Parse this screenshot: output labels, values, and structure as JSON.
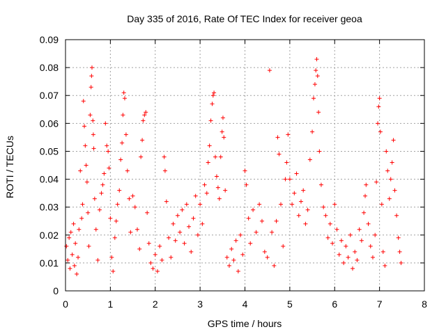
{
  "chart_data": {
    "type": "scatter",
    "title": "Day 335 of 2016, Rate Of TEC Index for receiver geoa",
    "xlabel": "GPS time / hours",
    "ylabel": "ROTI / TECUs",
    "xlim": [
      0,
      8
    ],
    "ylim": [
      0,
      0.09
    ],
    "x_ticks": [
      "0",
      "1",
      "2",
      "3",
      "4",
      "5",
      "6",
      "7",
      "8"
    ],
    "y_ticks": [
      "0",
      "0.01",
      "0.02",
      "0.03",
      "0.04",
      "0.05",
      "0.06",
      "0.07",
      "0.08",
      "0.09"
    ],
    "grid": true,
    "marker": "+",
    "color": "#ff0000",
    "series": [
      {
        "name": "ROTI",
        "points": [
          [
            0.02,
            0.016
          ],
          [
            0.05,
            0.011
          ],
          [
            0.08,
            0.019
          ],
          [
            0.1,
            0.008
          ],
          [
            0.12,
            0.021
          ],
          [
            0.15,
            0.013
          ],
          [
            0.18,
            0.024
          ],
          [
            0.2,
            0.009
          ],
          [
            0.22,
            0.017
          ],
          [
            0.25,
            0.006
          ],
          [
            0.28,
            0.012
          ],
          [
            0.3,
            0.022
          ],
          [
            0.33,
            0.043
          ],
          [
            0.36,
            0.026
          ],
          [
            0.38,
            0.031
          ],
          [
            0.4,
            0.068
          ],
          [
            0.42,
            0.059
          ],
          [
            0.44,
            0.052
          ],
          [
            0.46,
            0.045
          ],
          [
            0.48,
            0.039
          ],
          [
            0.5,
            0.028
          ],
          [
            0.52,
            0.016
          ],
          [
            0.55,
            0.063
          ],
          [
            0.57,
            0.073
          ],
          [
            0.58,
            0.077
          ],
          [
            0.59,
            0.08
          ],
          [
            0.61,
            0.061
          ],
          [
            0.62,
            0.056
          ],
          [
            0.63,
            0.051
          ],
          [
            0.65,
            0.033
          ],
          [
            0.68,
            0.022
          ],
          [
            0.72,
            0.011
          ],
          [
            0.76,
            0.029
          ],
          [
            0.8,
            0.035
          ],
          [
            0.83,
            0.038
          ],
          [
            0.86,
            0.042
          ],
          [
            0.89,
            0.06
          ],
          [
            0.92,
            0.052
          ],
          [
            0.95,
            0.05
          ],
          [
            0.97,
            0.044
          ],
          [
            1.0,
            0.026
          ],
          [
            1.03,
            0.012
          ],
          [
            1.06,
            0.007
          ],
          [
            1.1,
            0.019
          ],
          [
            1.13,
            0.025
          ],
          [
            1.16,
            0.031
          ],
          [
            1.2,
            0.036
          ],
          [
            1.23,
            0.047
          ],
          [
            1.26,
            0.053
          ],
          [
            1.28,
            0.063
          ],
          [
            1.3,
            0.071
          ],
          [
            1.32,
            0.069
          ],
          [
            1.35,
            0.056
          ],
          [
            1.38,
            0.043
          ],
          [
            1.42,
            0.033
          ],
          [
            1.45,
            0.021
          ],
          [
            1.5,
            0.034
          ],
          [
            1.55,
            0.03
          ],
          [
            1.6,
            0.022
          ],
          [
            1.65,
            0.015
          ],
          [
            1.68,
            0.048
          ],
          [
            1.71,
            0.054
          ],
          [
            1.73,
            0.061
          ],
          [
            1.76,
            0.063
          ],
          [
            1.79,
            0.064
          ],
          [
            1.82,
            0.028
          ],
          [
            1.86,
            0.017
          ],
          [
            1.9,
            0.01
          ],
          [
            1.95,
            0.008
          ],
          [
            2.0,
            0.013
          ],
          [
            2.05,
            0.007
          ],
          [
            2.1,
            0.016
          ],
          [
            2.15,
            0.011
          ],
          [
            2.2,
            0.048
          ],
          [
            2.22,
            0.043
          ],
          [
            2.25,
            0.032
          ],
          [
            2.3,
            0.019
          ],
          [
            2.35,
            0.012
          ],
          [
            2.4,
            0.024
          ],
          [
            2.45,
            0.018
          ],
          [
            2.5,
            0.027
          ],
          [
            2.55,
            0.021
          ],
          [
            2.6,
            0.029
          ],
          [
            2.65,
            0.017
          ],
          [
            2.7,
            0.031
          ],
          [
            2.75,
            0.023
          ],
          [
            2.8,
            0.014
          ],
          [
            2.85,
            0.026
          ],
          [
            2.9,
            0.034
          ],
          [
            2.95,
            0.02
          ],
          [
            3.0,
            0.031
          ],
          [
            3.05,
            0.024
          ],
          [
            3.1,
            0.038
          ],
          [
            3.15,
            0.035
          ],
          [
            3.18,
            0.046
          ],
          [
            3.21,
            0.052
          ],
          [
            3.24,
            0.061
          ],
          [
            3.27,
            0.067
          ],
          [
            3.29,
            0.07
          ],
          [
            3.31,
            0.071
          ],
          [
            3.34,
            0.048
          ],
          [
            3.37,
            0.041
          ],
          [
            3.4,
            0.037
          ],
          [
            3.43,
            0.033
          ],
          [
            3.46,
            0.048
          ],
          [
            3.49,
            0.057
          ],
          [
            3.51,
            0.062
          ],
          [
            3.53,
            0.055
          ],
          [
            3.56,
            0.036
          ],
          [
            3.6,
            0.012
          ],
          [
            3.65,
            0.009
          ],
          [
            3.7,
            0.015
          ],
          [
            3.75,
            0.011
          ],
          [
            3.8,
            0.018
          ],
          [
            3.85,
            0.007
          ],
          [
            3.9,
            0.02
          ],
          [
            3.95,
            0.013
          ],
          [
            4.0,
            0.043
          ],
          [
            4.03,
            0.038
          ],
          [
            4.08,
            0.026
          ],
          [
            4.12,
            0.017
          ],
          [
            4.18,
            0.029
          ],
          [
            4.25,
            0.021
          ],
          [
            4.32,
            0.031
          ],
          [
            4.38,
            0.025
          ],
          [
            4.44,
            0.014
          ],
          [
            4.5,
            0.012
          ],
          [
            4.55,
            0.079
          ],
          [
            4.6,
            0.021
          ],
          [
            4.65,
            0.009
          ],
          [
            4.7,
            0.025
          ],
          [
            4.73,
            0.055
          ],
          [
            4.76,
            0.049
          ],
          [
            4.8,
            0.031
          ],
          [
            4.85,
            0.016
          ],
          [
            4.9,
            0.04
          ],
          [
            4.93,
            0.046
          ],
          [
            4.96,
            0.056
          ],
          [
            5.0,
            0.04
          ],
          [
            5.05,
            0.031
          ],
          [
            5.1,
            0.035
          ],
          [
            5.15,
            0.042
          ],
          [
            5.2,
            0.027
          ],
          [
            5.25,
            0.032
          ],
          [
            5.3,
            0.036
          ],
          [
            5.35,
            0.024
          ],
          [
            5.4,
            0.029
          ],
          [
            5.45,
            0.047
          ],
          [
            5.5,
            0.057
          ],
          [
            5.53,
            0.069
          ],
          [
            5.56,
            0.074
          ],
          [
            5.58,
            0.079
          ],
          [
            5.6,
            0.083
          ],
          [
            5.62,
            0.077
          ],
          [
            5.64,
            0.064
          ],
          [
            5.66,
            0.05
          ],
          [
            5.7,
            0.038
          ],
          [
            5.75,
            0.03
          ],
          [
            5.8,
            0.027
          ],
          [
            5.85,
            0.019
          ],
          [
            5.9,
            0.024
          ],
          [
            5.95,
            0.017
          ],
          [
            6.0,
            0.031
          ],
          [
            6.05,
            0.022
          ],
          [
            6.1,
            0.013
          ],
          [
            6.15,
            0.018
          ],
          [
            6.2,
            0.01
          ],
          [
            6.25,
            0.016
          ],
          [
            6.3,
            0.012
          ],
          [
            6.35,
            0.02
          ],
          [
            6.4,
            0.008
          ],
          [
            6.45,
            0.014
          ],
          [
            6.5,
            0.011
          ],
          [
            6.55,
            0.022
          ],
          [
            6.6,
            0.018
          ],
          [
            6.65,
            0.028
          ],
          [
            6.68,
            0.034
          ],
          [
            6.7,
            0.038
          ],
          [
            6.75,
            0.024
          ],
          [
            6.8,
            0.016
          ],
          [
            6.85,
            0.012
          ],
          [
            6.9,
            0.02
          ],
          [
            6.93,
            0.039
          ],
          [
            6.96,
            0.06
          ],
          [
            6.98,
            0.066
          ],
          [
            7.0,
            0.069
          ],
          [
            7.02,
            0.057
          ],
          [
            7.05,
            0.031
          ],
          [
            7.08,
            0.014
          ],
          [
            7.12,
            0.009
          ],
          [
            7.15,
            0.05
          ],
          [
            7.18,
            0.043
          ],
          [
            7.22,
            0.033
          ],
          [
            7.25,
            0.04
          ],
          [
            7.28,
            0.046
          ],
          [
            7.31,
            0.054
          ],
          [
            7.34,
            0.036
          ],
          [
            7.38,
            0.027
          ],
          [
            7.42,
            0.019
          ],
          [
            7.45,
            0.014
          ],
          [
            7.48,
            0.01
          ]
        ]
      }
    ]
  }
}
